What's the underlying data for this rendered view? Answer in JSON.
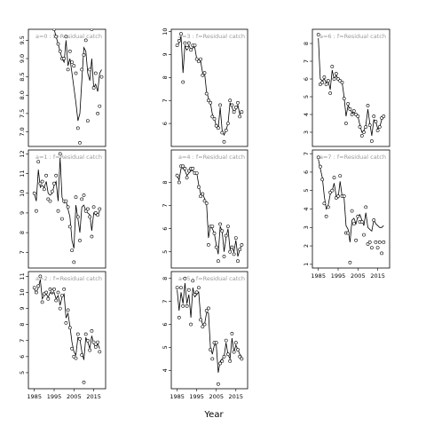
{
  "chart_data": {
    "type": "line",
    "xlabel": "Year",
    "x_ticks": [
      1985,
      1995,
      2005,
      2015
    ],
    "xlim": [
      1982,
      2021
    ],
    "layout": "3x3 grid, 8 panels (a=0..7), empty bottom-right",
    "panels": [
      {
        "label": "a=0  :  f=Residual catch",
        "ylim": [
          6.6,
          9.8
        ],
        "yticks": [
          "7.0",
          "7.5",
          "8.0",
          "8.5",
          "9.0",
          "9.5"
        ],
        "ytick_values": [
          7.0,
          7.5,
          8.0,
          8.5,
          9.0,
          9.5
        ],
        "show_xticks": false,
        "years": [
          1995,
          1996,
          1997,
          1998,
          1999,
          2000,
          2001,
          2002,
          2003,
          2004,
          2005,
          2006,
          2007,
          2008,
          2009,
          2010,
          2011,
          2012,
          2013,
          2014,
          2015,
          2016,
          2017,
          2018,
          2019
        ],
        "observed": [
          9.8,
          9.6,
          9.4,
          9.2,
          9.0,
          9.0,
          9.6,
          8.7,
          9.2,
          8.9,
          8.8,
          8.6,
          7.1,
          6.7,
          8.7,
          9.1,
          9.5,
          7.3,
          8.7,
          9.8,
          8.2,
          8.6,
          7.5,
          7.7,
          8.5
        ],
        "fitted": [
          9.8,
          9.6,
          9.4,
          9.2,
          9.0,
          8.9,
          9.5,
          8.8,
          9.0,
          8.6,
          8.2,
          7.8,
          7.3,
          7.5,
          8.4,
          9.3,
          9.2,
          8.6,
          8.4,
          9.0,
          8.2,
          8.3,
          8.1,
          8.6,
          8.7
        ]
      },
      {
        "label": "a=1  :  f=Residual catch",
        "ylim": [
          6.2,
          12.2
        ],
        "yticks": [
          "7",
          "8",
          "9",
          "10",
          "11",
          "12"
        ],
        "ytick_values": [
          7,
          8,
          9,
          10,
          11,
          12
        ],
        "show_xticks": false,
        "years": [
          1985,
          1986,
          1987,
          1988,
          1989,
          1990,
          1991,
          1992,
          1993,
          1994,
          1995,
          1996,
          1997,
          1998,
          1999,
          2000,
          2001,
          2002,
          2003,
          2004,
          2005,
          2006,
          2007,
          2008,
          2009,
          2010,
          2011,
          2012,
          2013,
          2014,
          2015,
          2016,
          2017,
          2018
        ],
        "observed": [
          10.0,
          9.1,
          11.6,
          10.5,
          10.6,
          10.2,
          10.9,
          9.7,
          9.6,
          10.1,
          10.5,
          10.9,
          9.1,
          12.0,
          8.7,
          9.6,
          9.6,
          9.3,
          8.3,
          7.1,
          6.5,
          9.8,
          8.8,
          7.6,
          9.7,
          9.9,
          9.1,
          9.2,
          8.8,
          7.8,
          9.3,
          9.0,
          8.9,
          9.2
        ],
        "fitted": [
          10.0,
          9.6,
          11.2,
          10.3,
          10.4,
          10.3,
          10.6,
          10.0,
          9.9,
          10.0,
          10.4,
          10.6,
          9.6,
          11.8,
          9.8,
          9.5,
          9.6,
          9.2,
          8.8,
          7.6,
          7.2,
          9.4,
          8.7,
          8.0,
          9.3,
          9.4,
          9.1,
          9.0,
          8.9,
          8.1,
          9.0,
          8.9,
          8.9,
          9.1
        ]
      },
      {
        "label": "a=2  :  f=Residual catch",
        "ylim": [
          4.0,
          11.3
        ],
        "yticks": [
          "5",
          "6",
          "7",
          "8",
          "9",
          "10",
          "11"
        ],
        "ytick_values": [
          5,
          6,
          7,
          8,
          9,
          10,
          11
        ],
        "show_xticks": true,
        "years": [
          1985,
          1986,
          1987,
          1988,
          1989,
          1990,
          1991,
          1992,
          1993,
          1994,
          1995,
          1996,
          1997,
          1998,
          1999,
          2000,
          2001,
          2002,
          2003,
          2004,
          2005,
          2006,
          2007,
          2008,
          2009,
          2010,
          2011,
          2012,
          2013,
          2014,
          2015,
          2016,
          2017,
          2018
        ],
        "observed": [
          10.3,
          10.0,
          10.4,
          11.0,
          9.4,
          9.9,
          10.0,
          9.6,
          10.2,
          10.1,
          10.2,
          9.5,
          10.0,
          9.0,
          9.8,
          10.2,
          8.1,
          8.9,
          7.8,
          6.5,
          6.0,
          5.9,
          7.4,
          7.1,
          6.1,
          4.4,
          7.4,
          7.0,
          6.4,
          7.6,
          6.9,
          6.6,
          6.9,
          6.3
        ],
        "fitted": [
          10.2,
          10.0,
          10.3,
          10.8,
          9.6,
          9.8,
          9.9,
          9.7,
          10.0,
          9.9,
          10.0,
          9.6,
          9.8,
          9.2,
          9.7,
          9.9,
          8.4,
          8.7,
          7.9,
          6.9,
          6.3,
          6.1,
          7.2,
          7.1,
          6.3,
          5.8,
          7.2,
          6.9,
          6.5,
          7.3,
          6.8,
          6.6,
          6.8,
          6.5
        ]
      },
      {
        "label": "a=3  :  f=Residual catch",
        "ylim": [
          5.0,
          10.1
        ],
        "yticks": [
          "6",
          "7",
          "8",
          "9",
          "10"
        ],
        "ytick_values": [
          6,
          7,
          8,
          9,
          10
        ],
        "show_xticks": false,
        "years": [
          1985,
          1986,
          1987,
          1988,
          1989,
          1990,
          1991,
          1992,
          1993,
          1994,
          1995,
          1996,
          1997,
          1998,
          1999,
          2000,
          2001,
          2002,
          2003,
          2004,
          2005,
          2006,
          2007,
          2008,
          2009,
          2010,
          2011,
          2012,
          2013,
          2014,
          2015,
          2016,
          2017,
          2018
        ],
        "observed": [
          9.4,
          9.6,
          9.9,
          7.8,
          9.5,
          9.3,
          9.5,
          9.2,
          9.4,
          9.4,
          8.8,
          8.7,
          8.8,
          8.1,
          8.2,
          7.3,
          7.0,
          6.9,
          6.3,
          6.2,
          5.9,
          5.8,
          6.8,
          5.6,
          5.2,
          5.7,
          6.0,
          7.0,
          6.8,
          6.5,
          6.7,
          6.9,
          6.3,
          6.5
        ],
        "fitted": [
          9.4,
          9.5,
          9.8,
          8.2,
          9.4,
          9.2,
          9.4,
          9.2,
          9.3,
          9.3,
          8.8,
          8.7,
          8.7,
          8.2,
          8.2,
          7.4,
          7.1,
          6.9,
          6.4,
          6.2,
          5.9,
          5.8,
          6.7,
          5.7,
          5.5,
          5.7,
          6.0,
          6.9,
          6.7,
          6.5,
          6.6,
          6.8,
          6.4,
          6.5
        ]
      },
      {
        "label": "a=4  :  f=Residual catch",
        "ylim": [
          4.3,
          9.4
        ],
        "yticks": [
          "5",
          "6",
          "7",
          "8"
        ],
        "ytick_values": [
          5,
          6,
          7,
          8
        ],
        "show_xticks": false,
        "years": [
          1985,
          1986,
          1987,
          1988,
          1989,
          1990,
          1991,
          1992,
          1993,
          1994,
          1995,
          1996,
          1997,
          1998,
          1999,
          2000,
          2001,
          2002,
          2003,
          2004,
          2005,
          2006,
          2007,
          2008,
          2009,
          2010,
          2011,
          2012,
          2013,
          2014,
          2015,
          2016,
          2017,
          2018
        ],
        "observed": [
          8.3,
          8.0,
          8.7,
          8.7,
          8.6,
          8.2,
          8.5,
          8.6,
          8.6,
          8.4,
          8.4,
          7.8,
          7.4,
          7.5,
          7.2,
          7.1,
          5.3,
          6.1,
          6.1,
          5.8,
          5.2,
          4.6,
          6.2,
          5.9,
          4.8,
          5.7,
          6.1,
          5.0,
          5.2,
          4.9,
          5.6,
          4.6,
          5.1,
          5.3
        ],
        "fitted": [
          8.3,
          8.1,
          8.6,
          8.6,
          8.5,
          8.3,
          8.4,
          8.5,
          8.5,
          8.4,
          8.4,
          7.9,
          7.5,
          7.5,
          7.3,
          7.1,
          5.6,
          6.1,
          6.0,
          5.8,
          5.3,
          4.9,
          6.1,
          5.9,
          5.0,
          5.6,
          6.0,
          5.1,
          5.2,
          5.0,
          5.5,
          4.8,
          5.1,
          5.3
        ]
      },
      {
        "label": "a=5  :  f=Residual catch",
        "ylim": [
          3.2,
          8.3
        ],
        "yticks": [
          "4",
          "5",
          "6",
          "7",
          "8"
        ],
        "ytick_values": [
          4,
          5,
          6,
          7,
          8
        ],
        "show_xticks": true,
        "years": [
          1985,
          1986,
          1987,
          1988,
          1989,
          1990,
          1991,
          1992,
          1993,
          1994,
          1995,
          1996,
          1997,
          1998,
          1999,
          2000,
          2001,
          2002,
          2003,
          2004,
          2005,
          2006,
          2007,
          2008,
          2009,
          2010,
          2011,
          2012,
          2013,
          2014,
          2015,
          2016,
          2017,
          2018
        ],
        "observed": [
          7.6,
          6.3,
          7.6,
          6.8,
          8.0,
          6.8,
          7.5,
          6.0,
          7.9,
          7.3,
          7.4,
          7.6,
          6.2,
          5.9,
          6.0,
          6.6,
          6.7,
          4.9,
          4.5,
          5.2,
          5.2,
          3.4,
          4.3,
          4.4,
          4.6,
          5.3,
          4.7,
          4.4,
          5.6,
          4.8,
          5.2,
          4.9,
          4.6,
          4.5
        ],
        "fitted": [
          7.5,
          6.6,
          7.4,
          6.9,
          7.8,
          6.9,
          7.3,
          6.3,
          7.6,
          7.2,
          7.3,
          7.4,
          6.3,
          6.0,
          6.0,
          6.5,
          6.5,
          5.0,
          4.7,
          5.1,
          5.1,
          3.9,
          4.4,
          4.5,
          4.6,
          5.2,
          4.7,
          4.5,
          5.4,
          4.8,
          5.1,
          4.9,
          4.7,
          4.6
        ]
      },
      {
        "label": "a=6  :  f=Residual catch",
        "ylim": [
          2.2,
          8.8
        ],
        "yticks": [
          "3",
          "4",
          "5",
          "6",
          "7",
          "8"
        ],
        "ytick_values": [
          3,
          4,
          5,
          6,
          7,
          8
        ],
        "show_xticks": false,
        "years": [
          1985,
          1986,
          1987,
          1988,
          1989,
          1990,
          1991,
          1992,
          1993,
          1994,
          1995,
          1996,
          1997,
          1998,
          1999,
          2000,
          2001,
          2002,
          2003,
          2004,
          2005,
          2006,
          2007,
          2008,
          2009,
          2010,
          2011,
          2012,
          2013,
          2014,
          2015,
          2016,
          2017,
          2018
        ],
        "observed": [
          8.5,
          5.7,
          5.8,
          6.1,
          5.7,
          5.9,
          5.2,
          6.7,
          6.0,
          6.3,
          6.0,
          5.9,
          5.8,
          4.9,
          3.5,
          4.6,
          4.3,
          4.0,
          4.2,
          4.0,
          3.9,
          3.3,
          2.8,
          3.0,
          3.3,
          4.5,
          3.4,
          2.5,
          3.9,
          3.6,
          3.1,
          3.3,
          3.8,
          3.9
        ],
        "fitted": [
          8.3,
          6.0,
          5.9,
          6.0,
          5.8,
          5.9,
          5.4,
          6.5,
          6.0,
          6.2,
          6.0,
          5.9,
          5.8,
          5.0,
          3.9,
          4.5,
          4.3,
          4.1,
          4.1,
          4.0,
          3.9,
          3.4,
          3.0,
          3.1,
          3.4,
          4.3,
          3.5,
          2.8,
          3.7,
          3.6,
          3.2,
          3.3,
          3.7,
          3.8
        ]
      },
      {
        "label": "a=7  :  f=Residual catch",
        "ylim": [
          0.8,
          7.2
        ],
        "yticks": [
          "1",
          "2",
          "3",
          "4",
          "5",
          "6",
          "7"
        ],
        "ytick_values": [
          1,
          2,
          3,
          4,
          5,
          6,
          7
        ],
        "show_xticks": true,
        "years": [
          1985,
          1986,
          1987,
          1988,
          1989,
          1990,
          1991,
          1992,
          1993,
          1994,
          1995,
          1996,
          1997,
          1998,
          1999,
          2000,
          2001,
          2002,
          2003,
          2004,
          2005,
          2006,
          2007,
          2008,
          2009,
          2010,
          2011,
          2012,
          2013,
          2014,
          2015,
          2016,
          2017,
          2018
        ],
        "observed": [
          6.8,
          6.3,
          5.6,
          4.3,
          3.6,
          4.1,
          4.9,
          5.0,
          5.7,
          4.6,
          4.7,
          5.8,
          4.7,
          4.7,
          2.7,
          2.7,
          1.1,
          3.9,
          3.2,
          2.3,
          3.6,
          3.3,
          3.3,
          2.6,
          4.1,
          2.1,
          2.2,
          1.9,
          3.4,
          2.2,
          1.9,
          2.2,
          1.6,
          2.2
        ],
        "fitted": [
          6.7,
          6.2,
          5.7,
          4.7,
          4.0,
          4.2,
          4.8,
          5.0,
          5.4,
          4.7,
          4.6,
          5.5,
          4.7,
          4.6,
          3.1,
          2.9,
          2.2,
          3.4,
          3.5,
          3.2,
          3.6,
          3.7,
          3.4,
          3.1,
          3.8,
          3.0,
          2.9,
          2.8,
          3.4,
          3.2,
          3.1,
          3.0,
          3.0,
          3.1
        ]
      }
    ]
  }
}
